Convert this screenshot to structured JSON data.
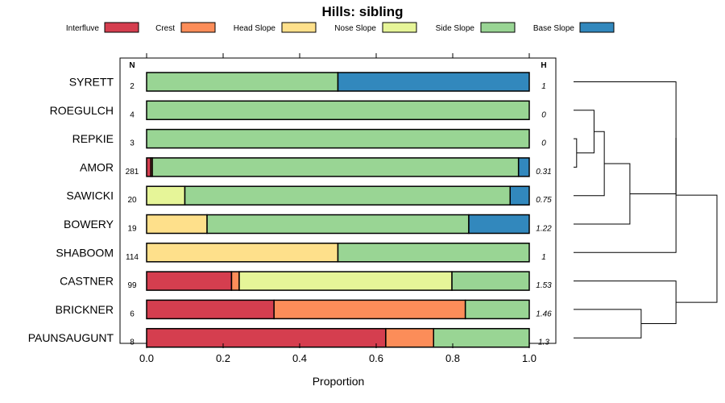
{
  "chart_data": {
    "type": "bar",
    "subtype": "horizontal-stacked-proportion",
    "title": "Hills: sibling",
    "xlabel": "Proportion",
    "ylabel": "",
    "xlim": [
      0,
      1
    ],
    "x_ticks": [
      0,
      0.2,
      0.4,
      0.6,
      0.8,
      1
    ],
    "x_tick_labels": [
      "0.0",
      "0.2",
      "0.4",
      "0.6",
      "0.8",
      "1.0"
    ],
    "n_header": "N",
    "h_header": "H",
    "legend": {
      "placement": "top",
      "entries": [
        {
          "name": "Interfluve",
          "color": "#d53e4f"
        },
        {
          "name": "Crest",
          "color": "#fc8d59"
        },
        {
          "name": "Head Slope",
          "color": "#fee08b"
        },
        {
          "name": "Nose Slope",
          "color": "#e6f598"
        },
        {
          "name": "Side Slope",
          "color": "#99d594"
        },
        {
          "name": "Base Slope",
          "color": "#3288bd"
        }
      ]
    },
    "categories": [
      "SYRETT",
      "ROEGULCH",
      "REPKIE",
      "AMOR",
      "SAWICKI",
      "BOWERY",
      "SHABOOM",
      "CASTNER",
      "BRICKNER",
      "PAUNSAUGUNT"
    ],
    "n": [
      "2",
      "4",
      "3",
      "281",
      "20",
      "19",
      "114",
      "99",
      "6",
      "8"
    ],
    "h": [
      "1",
      "0",
      "0",
      "0.31",
      "0.75",
      "1.22",
      "1",
      "1.53",
      "1.46",
      "1.3"
    ],
    "series": [
      {
        "name": "Interfluve",
        "values": [
          0,
          0,
          0,
          0.011,
          0,
          0,
          0,
          0.222,
          0.333,
          0.625
        ]
      },
      {
        "name": "Crest",
        "values": [
          0,
          0,
          0,
          0.004,
          0,
          0,
          0,
          0.02,
          0.5,
          0.125
        ]
      },
      {
        "name": "Head Slope",
        "values": [
          0,
          0,
          0,
          0,
          0,
          0.158,
          0.5,
          0,
          0,
          0
        ]
      },
      {
        "name": "Nose Slope",
        "values": [
          0,
          0,
          0,
          0,
          0.1,
          0,
          0,
          0.556,
          0,
          0
        ]
      },
      {
        "name": "Side Slope",
        "values": [
          0.5,
          1,
          1,
          0.957,
          0.85,
          0.684,
          0.5,
          0.202,
          0.167,
          0.25
        ]
      },
      {
        "name": "Base Slope",
        "values": [
          0.5,
          0,
          0,
          0.028,
          0.05,
          0.158,
          0,
          0,
          0,
          0
        ]
      }
    ],
    "dendrogram": {
      "leaves": [
        "SYRETT",
        "ROEGULCH",
        "REPKIE",
        "AMOR",
        "SAWICKI",
        "BOWERY",
        "SHABOOM",
        "CASTNER",
        "BRICKNER",
        "PAUNSAUGUNT"
      ],
      "merges": [
        {
          "left": "REPKIE",
          "right": "AMOR",
          "height": 0.03
        },
        {
          "left": "ROEGULCH",
          "right": 0,
          "height": 0.2
        },
        {
          "left": 1,
          "right": "SAWICKI",
          "height": 0.3
        },
        {
          "left": 2,
          "right": "BOWERY",
          "height": 0.55
        },
        {
          "left": "SYRETT",
          "right": 3,
          "height": 1.0
        },
        {
          "left": 4,
          "right": "SHABOOM",
          "height": 1.0
        },
        {
          "left": "BRICKNER",
          "right": "PAUNSAUGUNT",
          "height": 0.66
        },
        {
          "left": "CASTNER",
          "right": 6,
          "height": 1.0
        },
        {
          "left": 5,
          "right": 7,
          "height": 1.4
        }
      ]
    }
  }
}
